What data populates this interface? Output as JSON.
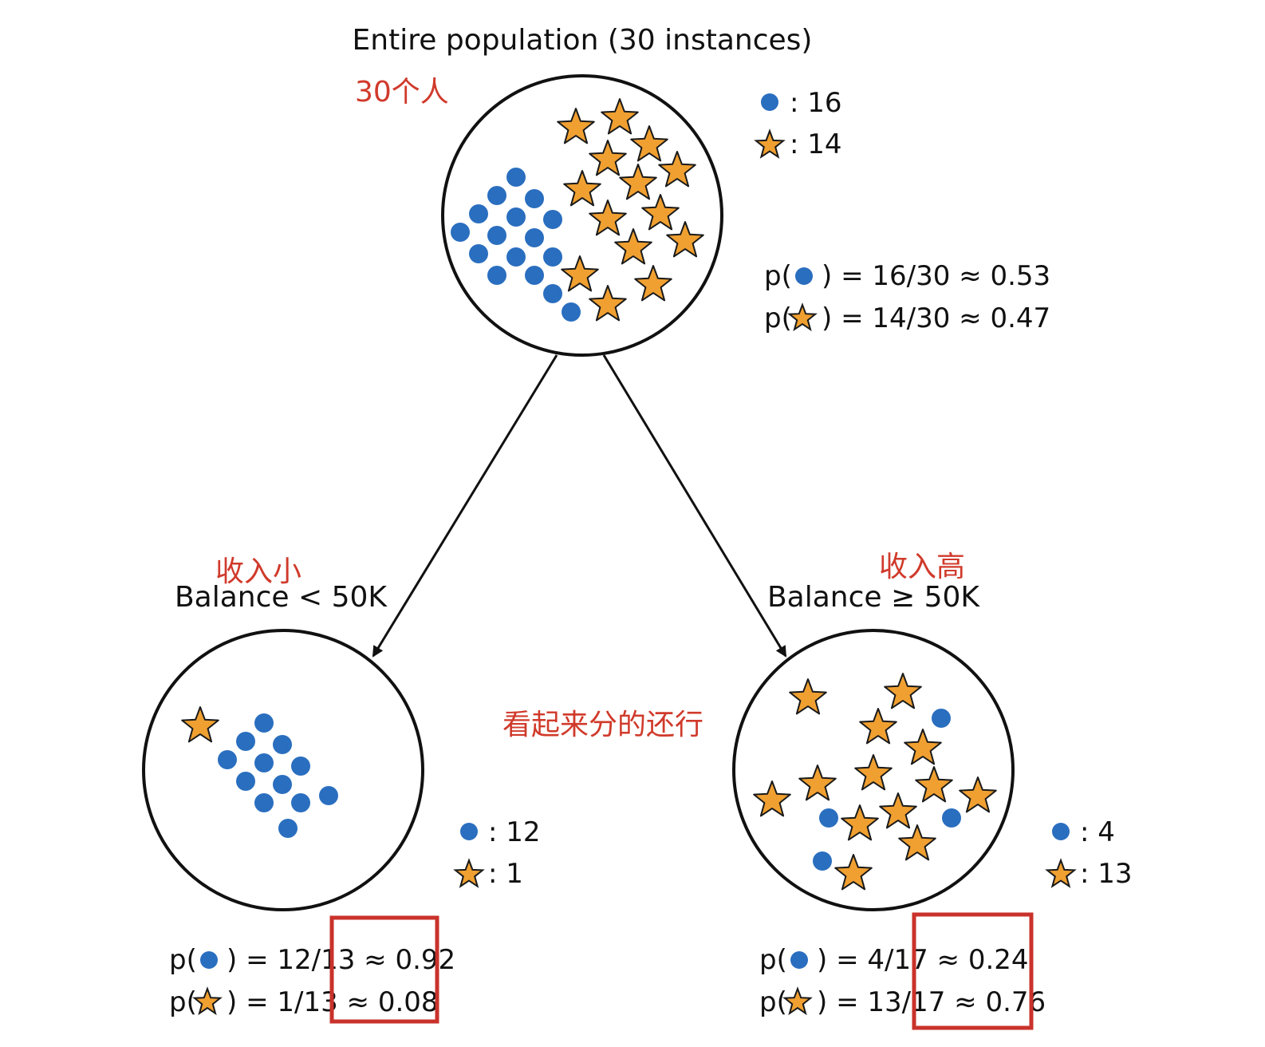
{
  "colors": {
    "circle_marker": "#2a6ebf",
    "star_marker": "#f0a030",
    "star_outline": "#1a1a1a",
    "annotation": "#d03a2a",
    "highlight_box": "#c8322a"
  },
  "icons": {
    "circle_marker": "blue-dot-icon",
    "star_marker": "orange-star-icon"
  },
  "root": {
    "title": "Entire population (30 instances)",
    "note": "30个人",
    "dot_count": ": 16",
    "star_count": ": 14",
    "p_dot_prefix": "p(",
    "p_dot_value": ") = 16/30 ≈ 0.53",
    "p_star_prefix": "p(",
    "p_star_value": ") = 14/30 ≈ 0.47"
  },
  "left": {
    "note": "收入小",
    "condition": "Balance < 50K",
    "dot_count": ": 12",
    "star_count": ": 1",
    "p_dot_prefix": "p(",
    "p_dot_value": ") = 12/13 ≈ 0.92",
    "p_star_prefix": "p(",
    "p_star_value": ") = 1/13 ≈ 0.08"
  },
  "right": {
    "note": "收入高",
    "condition": "Balance ≥ 50K",
    "dot_count": ": 4",
    "star_count": ": 13",
    "p_dot_prefix": "p(",
    "p_dot_value": ") = 4/17 ≈ 0.24",
    "p_star_prefix": "p(",
    "p_star_value": ") = 13/17 ≈ 0.76"
  },
  "middle_note": "看起来分的还行"
}
